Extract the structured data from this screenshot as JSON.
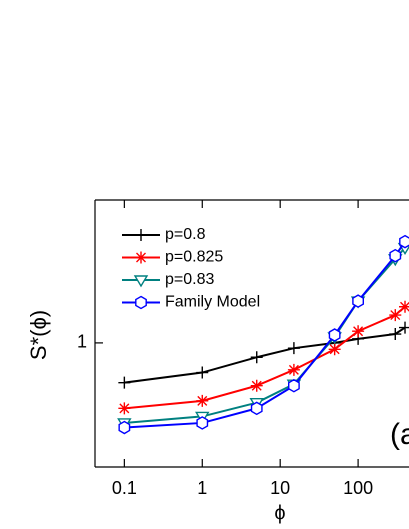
{
  "chart_data": {
    "type": "line",
    "xlabel": "ϕ",
    "ylabel": "S*(ϕ)",
    "annotation": "(a",
    "xscale": "log",
    "yscale": "log",
    "xlim": [
      0.042,
      450
    ],
    "ylim": [
      0.3,
      4
    ],
    "xticks": [
      0.1,
      1,
      10,
      100
    ],
    "yticks": [
      1
    ],
    "x": [
      0.1,
      1,
      5,
      15,
      50,
      100,
      300,
      400
    ],
    "legend": "upper left",
    "series": [
      {
        "name": "p=0.8",
        "color": "#000000",
        "marker": "plus",
        "values": [
          0.68,
          0.75,
          0.87,
          0.95,
          1.0,
          1.04,
          1.09,
          1.16
        ]
      },
      {
        "name": "p=0.825",
        "color": "#ff0000",
        "marker": "asterisk",
        "values": [
          0.53,
          0.57,
          0.66,
          0.77,
          0.94,
          1.12,
          1.31,
          1.42
        ]
      },
      {
        "name": "p=0.83",
        "color": "#008080",
        "marker": "triangle-down",
        "values": [
          0.46,
          0.49,
          0.56,
          0.67,
          1.06,
          1.5,
          2.26,
          2.52
        ]
      },
      {
        "name": "Family Model",
        "color": "#0000ff",
        "marker": "hexagon",
        "values": [
          0.44,
          0.46,
          0.53,
          0.66,
          1.08,
          1.5,
          2.33,
          2.67
        ]
      }
    ]
  }
}
